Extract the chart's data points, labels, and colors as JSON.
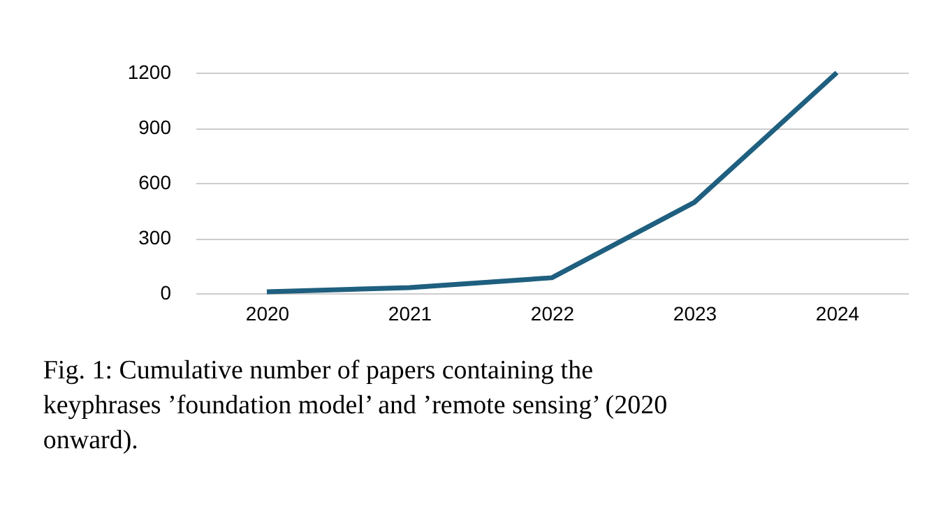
{
  "chart_data": {
    "type": "line",
    "categories": [
      "2020",
      "2021",
      "2022",
      "2023",
      "2024"
    ],
    "series": [
      {
        "color": "#1f5f7f",
        "values": [
          8,
          30,
          84,
          494,
          1200
        ]
      }
    ],
    "ylim": [
      0,
      1200
    ],
    "yticks": [
      0,
      300,
      600,
      900,
      1200
    ],
    "grid": "y",
    "marker": "none",
    "line_style": "solid",
    "annotations": [
      "Fig. 1: Cumulative number of papers containing the keyphrases ’foundation model’ and ’remote sensing’ (2020 onward)."
    ]
  }
}
